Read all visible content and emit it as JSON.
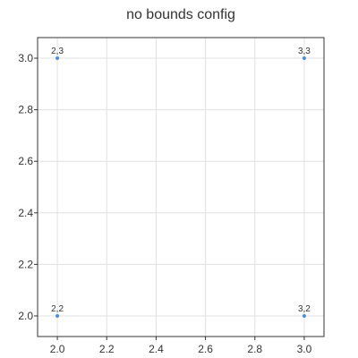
{
  "chart_data": {
    "type": "scatter",
    "title": "no bounds config",
    "xlabel": "",
    "ylabel": "",
    "xlim": [
      1.92,
      3.08
    ],
    "ylim": [
      1.92,
      3.08
    ],
    "x_ticks": [
      2.0,
      2.2,
      2.4,
      2.6,
      2.8,
      3.0
    ],
    "x_tick_labels": [
      "2.0",
      "2.2",
      "2.4",
      "2.6",
      "2.8",
      "3.0"
    ],
    "y_ticks": [
      2.0,
      2.2,
      2.4,
      2.6,
      2.8,
      3.0
    ],
    "y_tick_labels": [
      "2.0",
      "2.2",
      "2.4",
      "2.6",
      "2.8",
      "3.0"
    ],
    "grid": true,
    "points": [
      {
        "x": 2,
        "y": 3,
        "label": "2,3"
      },
      {
        "x": 3,
        "y": 3,
        "label": "3,3"
      },
      {
        "x": 2,
        "y": 2,
        "label": "2,2"
      },
      {
        "x": 3,
        "y": 2,
        "label": "3,2"
      }
    ],
    "colors": {
      "point": "#4a90d9",
      "grid": "#e0e0e0",
      "frame": "#333333"
    }
  }
}
